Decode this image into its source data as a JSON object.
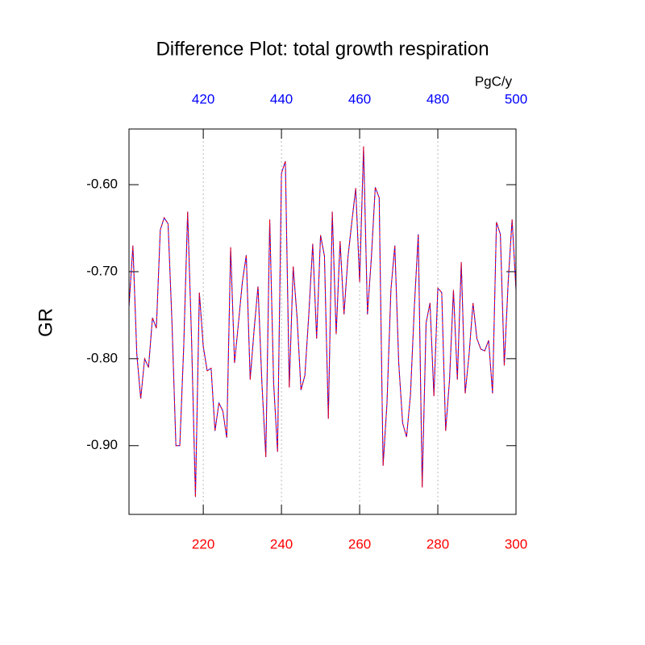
{
  "chart_data": {
    "type": "line",
    "title": "Difference Plot: total growth respiration",
    "y_label": "GR",
    "units": "PgC/y",
    "xlim": [
      201,
      300
    ],
    "xticks": [
      220,
      240,
      260,
      280,
      300
    ],
    "x2lim": [
      401,
      500
    ],
    "x2ticks": [
      420,
      440,
      460,
      480,
      500
    ],
    "ylim": [
      -0.979,
      -0.536
    ],
    "yticks": [
      {
        "value": -0.6,
        "label": "-0.60"
      },
      {
        "value": -0.7,
        "label": "-0.70"
      },
      {
        "value": -0.8,
        "label": "-0.80"
      },
      {
        "value": -0.9,
        "label": "-0.90"
      }
    ],
    "grid": true,
    "series": [
      {
        "color": "blue",
        "dashed": false,
        "axis": "x2",
        "x": [
          401,
          402,
          403,
          404,
          405,
          406,
          407,
          408,
          409,
          410,
          411,
          412,
          413,
          414,
          415,
          416,
          417,
          418,
          419,
          420,
          421,
          422,
          423,
          424,
          425,
          426,
          427,
          428,
          429,
          430,
          431,
          432,
          433,
          434,
          435,
          436,
          437,
          438,
          439,
          440,
          441,
          442,
          443,
          444,
          445,
          446,
          447,
          448,
          449,
          450,
          451,
          452,
          453,
          454,
          455,
          456,
          457,
          458,
          459,
          460,
          461,
          462,
          463,
          464,
          465,
          466,
          467,
          468,
          469,
          470,
          471,
          472,
          473,
          474,
          475,
          476,
          477,
          478,
          479,
          480,
          481,
          482,
          483,
          484,
          485,
          486,
          487,
          488,
          489,
          490,
          491,
          492,
          493,
          494,
          495,
          496,
          497,
          498,
          499,
          500
        ],
        "values": [
          -0.74,
          -0.67,
          -0.795,
          -0.846,
          -0.8,
          -0.81,
          -0.753,
          -0.765,
          -0.652,
          -0.638,
          -0.645,
          -0.759,
          -0.9,
          -0.9,
          -0.786,
          -0.631,
          -0.777,
          -0.959,
          -0.724,
          -0.786,
          -0.814,
          -0.811,
          -0.883,
          -0.851,
          -0.86,
          -0.891,
          -0.672,
          -0.805,
          -0.759,
          -0.712,
          -0.681,
          -0.824,
          -0.767,
          -0.717,
          -0.828,
          -0.913,
          -0.64,
          -0.828,
          -0.907,
          -0.587,
          -0.573,
          -0.833,
          -0.694,
          -0.753,
          -0.836,
          -0.819,
          -0.749,
          -0.668,
          -0.777,
          -0.658,
          -0.682,
          -0.869,
          -0.631,
          -0.772,
          -0.665,
          -0.749,
          -0.684,
          -0.643,
          -0.604,
          -0.712,
          -0.556,
          -0.749,
          -0.684,
          -0.603,
          -0.615,
          -0.923,
          -0.851,
          -0.721,
          -0.67,
          -0.805,
          -0.874,
          -0.89,
          -0.842,
          -0.74,
          -0.657,
          -0.948,
          -0.759,
          -0.736,
          -0.843,
          -0.719,
          -0.724,
          -0.883,
          -0.824,
          -0.721,
          -0.824,
          -0.689,
          -0.84,
          -0.795,
          -0.736,
          -0.777,
          -0.789,
          -0.791,
          -0.779,
          -0.84,
          -0.643,
          -0.657,
          -0.808,
          -0.712,
          -0.64,
          -0.721
        ]
      },
      {
        "color": "red",
        "dashed": true,
        "axis": "x",
        "x": [
          201,
          202,
          203,
          204,
          205,
          206,
          207,
          208,
          209,
          210,
          211,
          212,
          213,
          214,
          215,
          216,
          217,
          218,
          219,
          220,
          221,
          222,
          223,
          224,
          225,
          226,
          227,
          228,
          229,
          230,
          231,
          232,
          233,
          234,
          235,
          236,
          237,
          238,
          239,
          240,
          241,
          242,
          243,
          244,
          245,
          246,
          247,
          248,
          249,
          250,
          251,
          252,
          253,
          254,
          255,
          256,
          257,
          258,
          259,
          260,
          261,
          262,
          263,
          264,
          265,
          266,
          267,
          268,
          269,
          270,
          271,
          272,
          273,
          274,
          275,
          276,
          277,
          278,
          279,
          280,
          281,
          282,
          283,
          284,
          285,
          286,
          287,
          288,
          289,
          290,
          291,
          292,
          293,
          294,
          295,
          296,
          297,
          298,
          299,
          300
        ],
        "values": [
          -0.74,
          -0.67,
          -0.795,
          -0.846,
          -0.8,
          -0.81,
          -0.753,
          -0.765,
          -0.652,
          -0.638,
          -0.645,
          -0.759,
          -0.9,
          -0.9,
          -0.786,
          -0.631,
          -0.777,
          -0.959,
          -0.724,
          -0.786,
          -0.814,
          -0.811,
          -0.883,
          -0.851,
          -0.86,
          -0.891,
          -0.672,
          -0.805,
          -0.759,
          -0.712,
          -0.681,
          -0.824,
          -0.767,
          -0.717,
          -0.828,
          -0.913,
          -0.64,
          -0.828,
          -0.907,
          -0.587,
          -0.573,
          -0.833,
          -0.694,
          -0.753,
          -0.836,
          -0.819,
          -0.749,
          -0.668,
          -0.777,
          -0.658,
          -0.682,
          -0.869,
          -0.631,
          -0.772,
          -0.665,
          -0.749,
          -0.684,
          -0.643,
          -0.604,
          -0.712,
          -0.556,
          -0.749,
          -0.684,
          -0.603,
          -0.615,
          -0.923,
          -0.851,
          -0.721,
          -0.67,
          -0.805,
          -0.874,
          -0.89,
          -0.842,
          -0.74,
          -0.657,
          -0.948,
          -0.759,
          -0.736,
          -0.843,
          -0.719,
          -0.724,
          -0.883,
          -0.824,
          -0.721,
          -0.824,
          -0.689,
          -0.84,
          -0.795,
          -0.736,
          -0.777,
          -0.789,
          -0.791,
          -0.779,
          -0.84,
          -0.643,
          -0.657,
          -0.808,
          -0.712,
          -0.64,
          -0.721
        ]
      }
    ]
  }
}
